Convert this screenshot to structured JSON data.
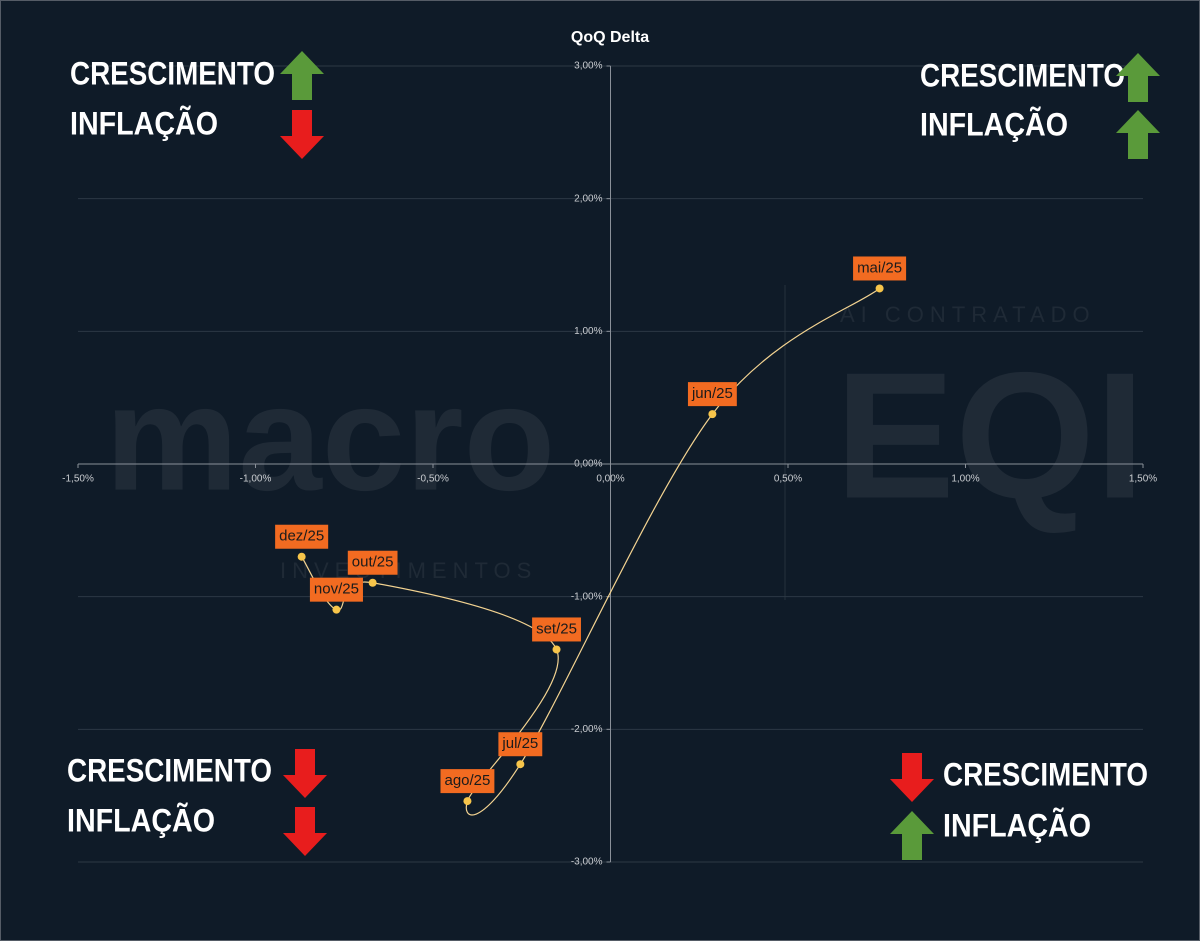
{
  "chart_data": {
    "type": "scatter-line",
    "title": "QoQ Delta",
    "point_labels": [
      "mai/25",
      "jun/25",
      "jul/25",
      "ago/25",
      "set/25",
      "out/25",
      "nov/25",
      "dez/25"
    ],
    "x": [
      0.758,
      0.287,
      -0.254,
      -0.403,
      -0.152,
      -0.67,
      -0.772,
      -0.87
    ],
    "values": [
      1.323,
      0.376,
      -2.263,
      -2.541,
      -1.398,
      -0.895,
      -1.098,
      -0.699
    ],
    "line_color": "#f3d391",
    "marker_color": "#f7c54a",
    "label_color": "#f26b21",
    "xlim": [
      -1.5,
      1.5
    ],
    "ylim": [
      -3,
      3
    ],
    "xticks": [
      {
        "value": -1.5,
        "label": "-1,50%"
      },
      {
        "value": -1,
        "label": "-1,00%"
      },
      {
        "value": -0.5,
        "label": "-0,50%"
      },
      {
        "value": 0,
        "label": "0,00%"
      },
      {
        "value": 0.5,
        "label": "0,50%"
      },
      {
        "value": 1,
        "label": "1,00%"
      },
      {
        "value": 1.5,
        "label": "1,50%"
      }
    ],
    "yticks": [
      {
        "value": -3,
        "label": "-3,00%"
      },
      {
        "value": -2,
        "label": "-2,00%"
      },
      {
        "value": -1,
        "label": "-1,00%"
      },
      {
        "value": 0,
        "label": "0,00%"
      },
      {
        "value": 1,
        "label": "1,00%"
      },
      {
        "value": 2,
        "label": "2,00%"
      },
      {
        "value": 3,
        "label": "3,00%"
      }
    ],
    "grid": true,
    "quadrants": [
      {
        "corner": "top-left",
        "growth": "CRESCIMENTO",
        "growth_arrow": "up",
        "inflation": "INFLAÇÃO",
        "inflation_arrow": "down"
      },
      {
        "corner": "top-right",
        "growth": "CRESCIMENTO",
        "growth_arrow": "up",
        "inflation": "INFLAÇÃO",
        "inflation_arrow": "up"
      },
      {
        "corner": "bottom-left",
        "growth": "CRESCIMENTO",
        "growth_arrow": "down",
        "inflation": "INFLAÇÃO",
        "inflation_arrow": "down"
      },
      {
        "corner": "bottom-right",
        "growth": "CRESCIMENTO",
        "growth_arrow": "down",
        "inflation": "INFLAÇÃO",
        "inflation_arrow": "up"
      }
    ],
    "watermark": [
      "macro",
      "INVESTIMENTOS",
      "EQI",
      "AI CONTRATADO"
    ]
  }
}
